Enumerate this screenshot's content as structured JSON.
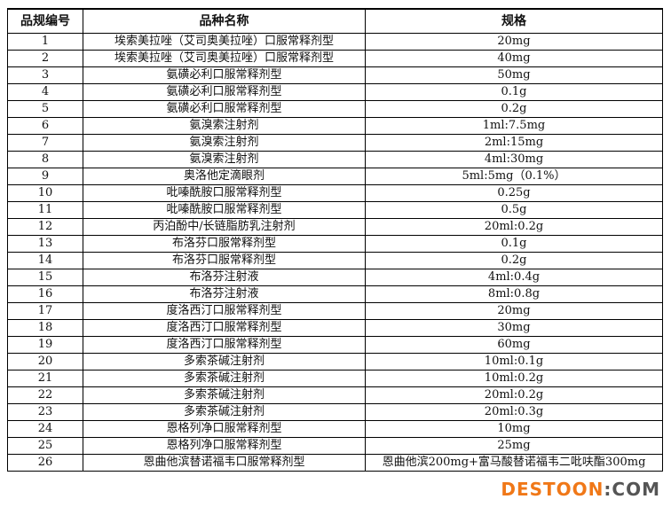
{
  "table": {
    "headers": [
      "品规编号",
      "品种名称",
      "规格"
    ],
    "rows": [
      [
        "1",
        "埃索美拉唑（艾司奥美拉唑）口服常释剂型",
        "20mg"
      ],
      [
        "2",
        "埃索美拉唑（艾司奥美拉唑）口服常释剂型",
        "40mg"
      ],
      [
        "3",
        "氨磺必利口服常释剂型",
        "50mg"
      ],
      [
        "4",
        "氨磺必利口服常释剂型",
        "0.1g"
      ],
      [
        "5",
        "氨磺必利口服常释剂型",
        "0.2g"
      ],
      [
        "6",
        "氨溴索注射剂",
        "1ml:7.5mg"
      ],
      [
        "7",
        "氨溴索注射剂",
        "2ml:15mg"
      ],
      [
        "8",
        "氨溴索注射剂",
        "4ml:30mg"
      ],
      [
        "9",
        "奥洛他定滴眼剂",
        "5ml:5mg（0.1%）"
      ],
      [
        "10",
        "吡嗪酰胺口服常释剂型",
        "0.25g"
      ],
      [
        "11",
        "吡嗪酰胺口服常释剂型",
        "0.5g"
      ],
      [
        "12",
        "丙泊酚中/长链脂肪乳注射剂",
        "20ml:0.2g"
      ],
      [
        "13",
        "布洛芬口服常释剂型",
        "0.1g"
      ],
      [
        "14",
        "布洛芬口服常释剂型",
        "0.2g"
      ],
      [
        "15",
        "布洛芬注射液",
        "4ml:0.4g"
      ],
      [
        "16",
        "布洛芬注射液",
        "8ml:0.8g"
      ],
      [
        "17",
        "度洛西汀口服常释剂型",
        "20mg"
      ],
      [
        "18",
        "度洛西汀口服常释剂型",
        "30mg"
      ],
      [
        "19",
        "度洛西汀口服常释剂型",
        "60mg"
      ],
      [
        "20",
        "多索茶碱注射剂",
        "10ml:0.1g"
      ],
      [
        "21",
        "多索茶碱注射剂",
        "10ml:0.2g"
      ],
      [
        "22",
        "多索茶碱注射剂",
        "20ml:0.2g"
      ],
      [
        "23",
        "多索茶碱注射剂",
        "20ml:0.3g"
      ],
      [
        "24",
        "恩格列净口服常释剂型",
        "10mg"
      ],
      [
        "25",
        "恩格列净口服常释剂型",
        "25mg"
      ],
      [
        "26",
        "恩曲他滨替诺福韦口服常释剂型",
        "恩曲他滨200mg+富马酸替诺福韦二吡呋酯300mg"
      ]
    ]
  },
  "watermark": {
    "part1": "DESTOON",
    "part2": ":COM",
    "color": "#f07818"
  }
}
